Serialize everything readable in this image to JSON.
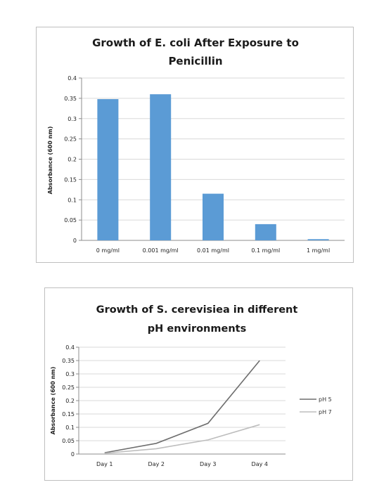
{
  "chart_data": [
    {
      "type": "bar",
      "title_lines": [
        "Growth of E. coli After Exposure to",
        "Penicillin"
      ],
      "ylabel": "Absorbance (600 nm)",
      "xlabel": "",
      "categories": [
        "0 mg/ml",
        "0.001 mg/ml",
        "0.01 mg/ml",
        "0.1 mg/ml",
        "1 mg/ml"
      ],
      "values": [
        0.348,
        0.36,
        0.115,
        0.04,
        0.003
      ],
      "ylim": [
        0,
        0.4
      ],
      "yticks": [
        "0",
        "0.05",
        "0.1",
        "0.15",
        "0.2",
        "0.25",
        "0.3",
        "0.35",
        "0.4"
      ],
      "grid": true,
      "legend": "none",
      "color": "#5b9bd5"
    },
    {
      "type": "line",
      "title_lines": [
        "Growth of S. cerevisiea in different",
        "pH environments"
      ],
      "ylabel": "Absorbance (600 nm)",
      "xlabel": "",
      "categories": [
        "Day 1",
        "Day 2",
        "Day 3",
        "Day 4"
      ],
      "series": [
        {
          "name": "pH 5",
          "values": [
            0.005,
            0.04,
            0.115,
            0.35
          ],
          "color": "#6e6e6e"
        },
        {
          "name": "pH 7",
          "values": [
            0.003,
            0.02,
            0.053,
            0.11
          ],
          "color": "#bdbdbd"
        }
      ],
      "ylim": [
        0,
        0.4
      ],
      "yticks": [
        "0",
        "0.05",
        "0.1",
        "0.15",
        "0.2",
        "0.25",
        "0.3",
        "0.35",
        "0.4"
      ],
      "grid": true,
      "legend": "right"
    }
  ]
}
